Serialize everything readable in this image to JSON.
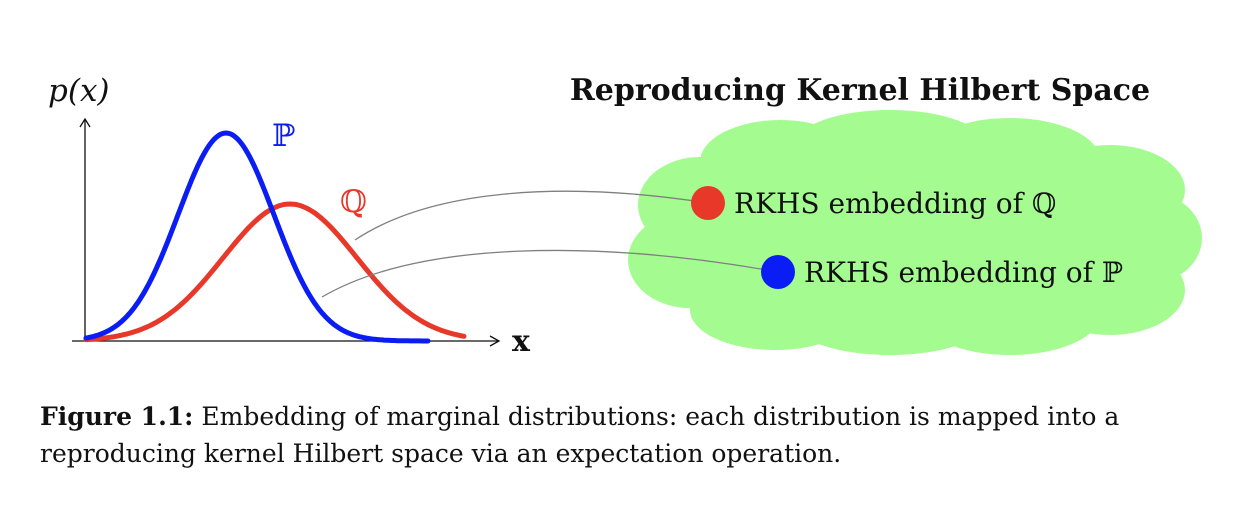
{
  "figure": {
    "axis_y_label": "p(x)",
    "axis_x_label": "x",
    "label_p": "ℙ",
    "label_q": "ℚ",
    "rkhs_title": "Reproducing Kernel Hilbert Space",
    "embed_q": "RKHS embedding of ℚ",
    "embed_p": "RKHS embedding of ℙ"
  },
  "caption": {
    "label": "Figure 1.1:",
    "text": "Embedding of marginal distributions: each distribution is mapped into a reproducing kernel Hilbert space via an expectation operation."
  },
  "colors": {
    "p": "#0b1df5",
    "q": "#e8382a",
    "cloud": "#a4fb90",
    "connector": "#7f7f7f"
  }
}
